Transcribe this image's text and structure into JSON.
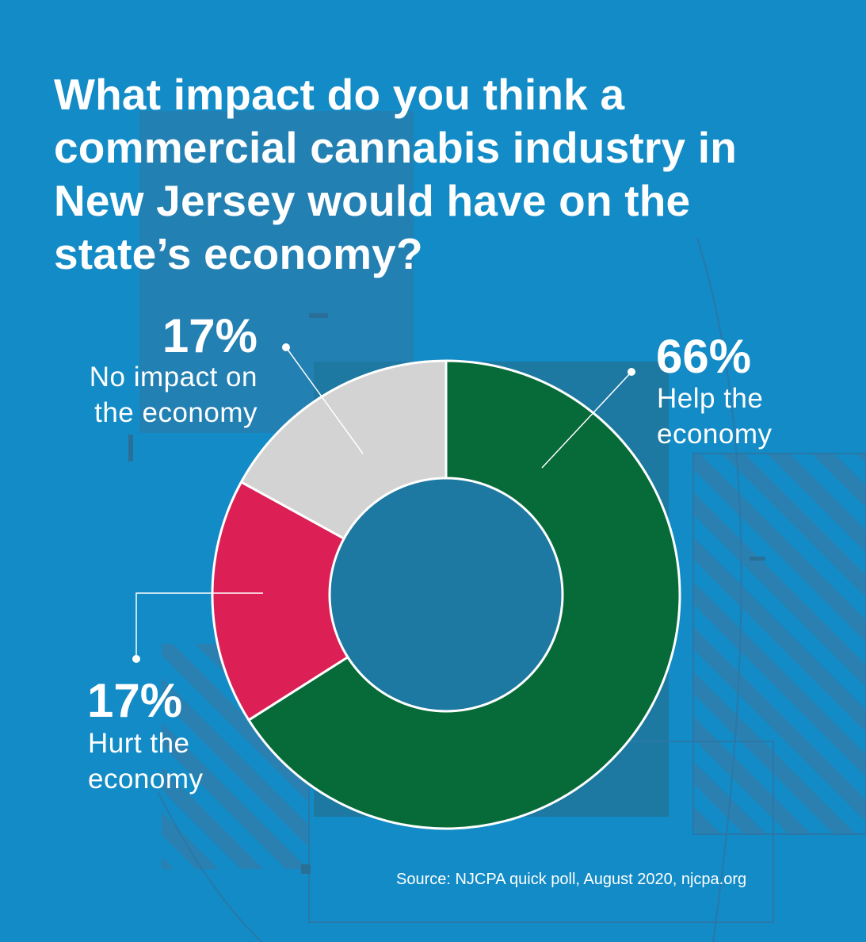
{
  "title": "What impact do you think a commercial cannabis industry in New Jersey would have on the state’s economy?",
  "source": "Source: NJCPA quick poll, August 2020, njcpa.org",
  "colors": {
    "background": "#128bc6",
    "help": "#066a39",
    "hurt": "#dc1f55",
    "none": "#d3d3d3",
    "center": "#1d79a2"
  },
  "chart_data": {
    "type": "pie",
    "donut": true,
    "slices": [
      {
        "pct_label": "66%",
        "label": "Help the\neconomy",
        "value": 66,
        "color": "#066a39"
      },
      {
        "pct_label": "17%",
        "label": "Hurt the\neconomy",
        "value": 17,
        "color": "#dc1f55"
      },
      {
        "pct_label": "17%",
        "label": "No impact on\nthe economy",
        "value": 17,
        "color": "#d3d3d3"
      }
    ]
  }
}
